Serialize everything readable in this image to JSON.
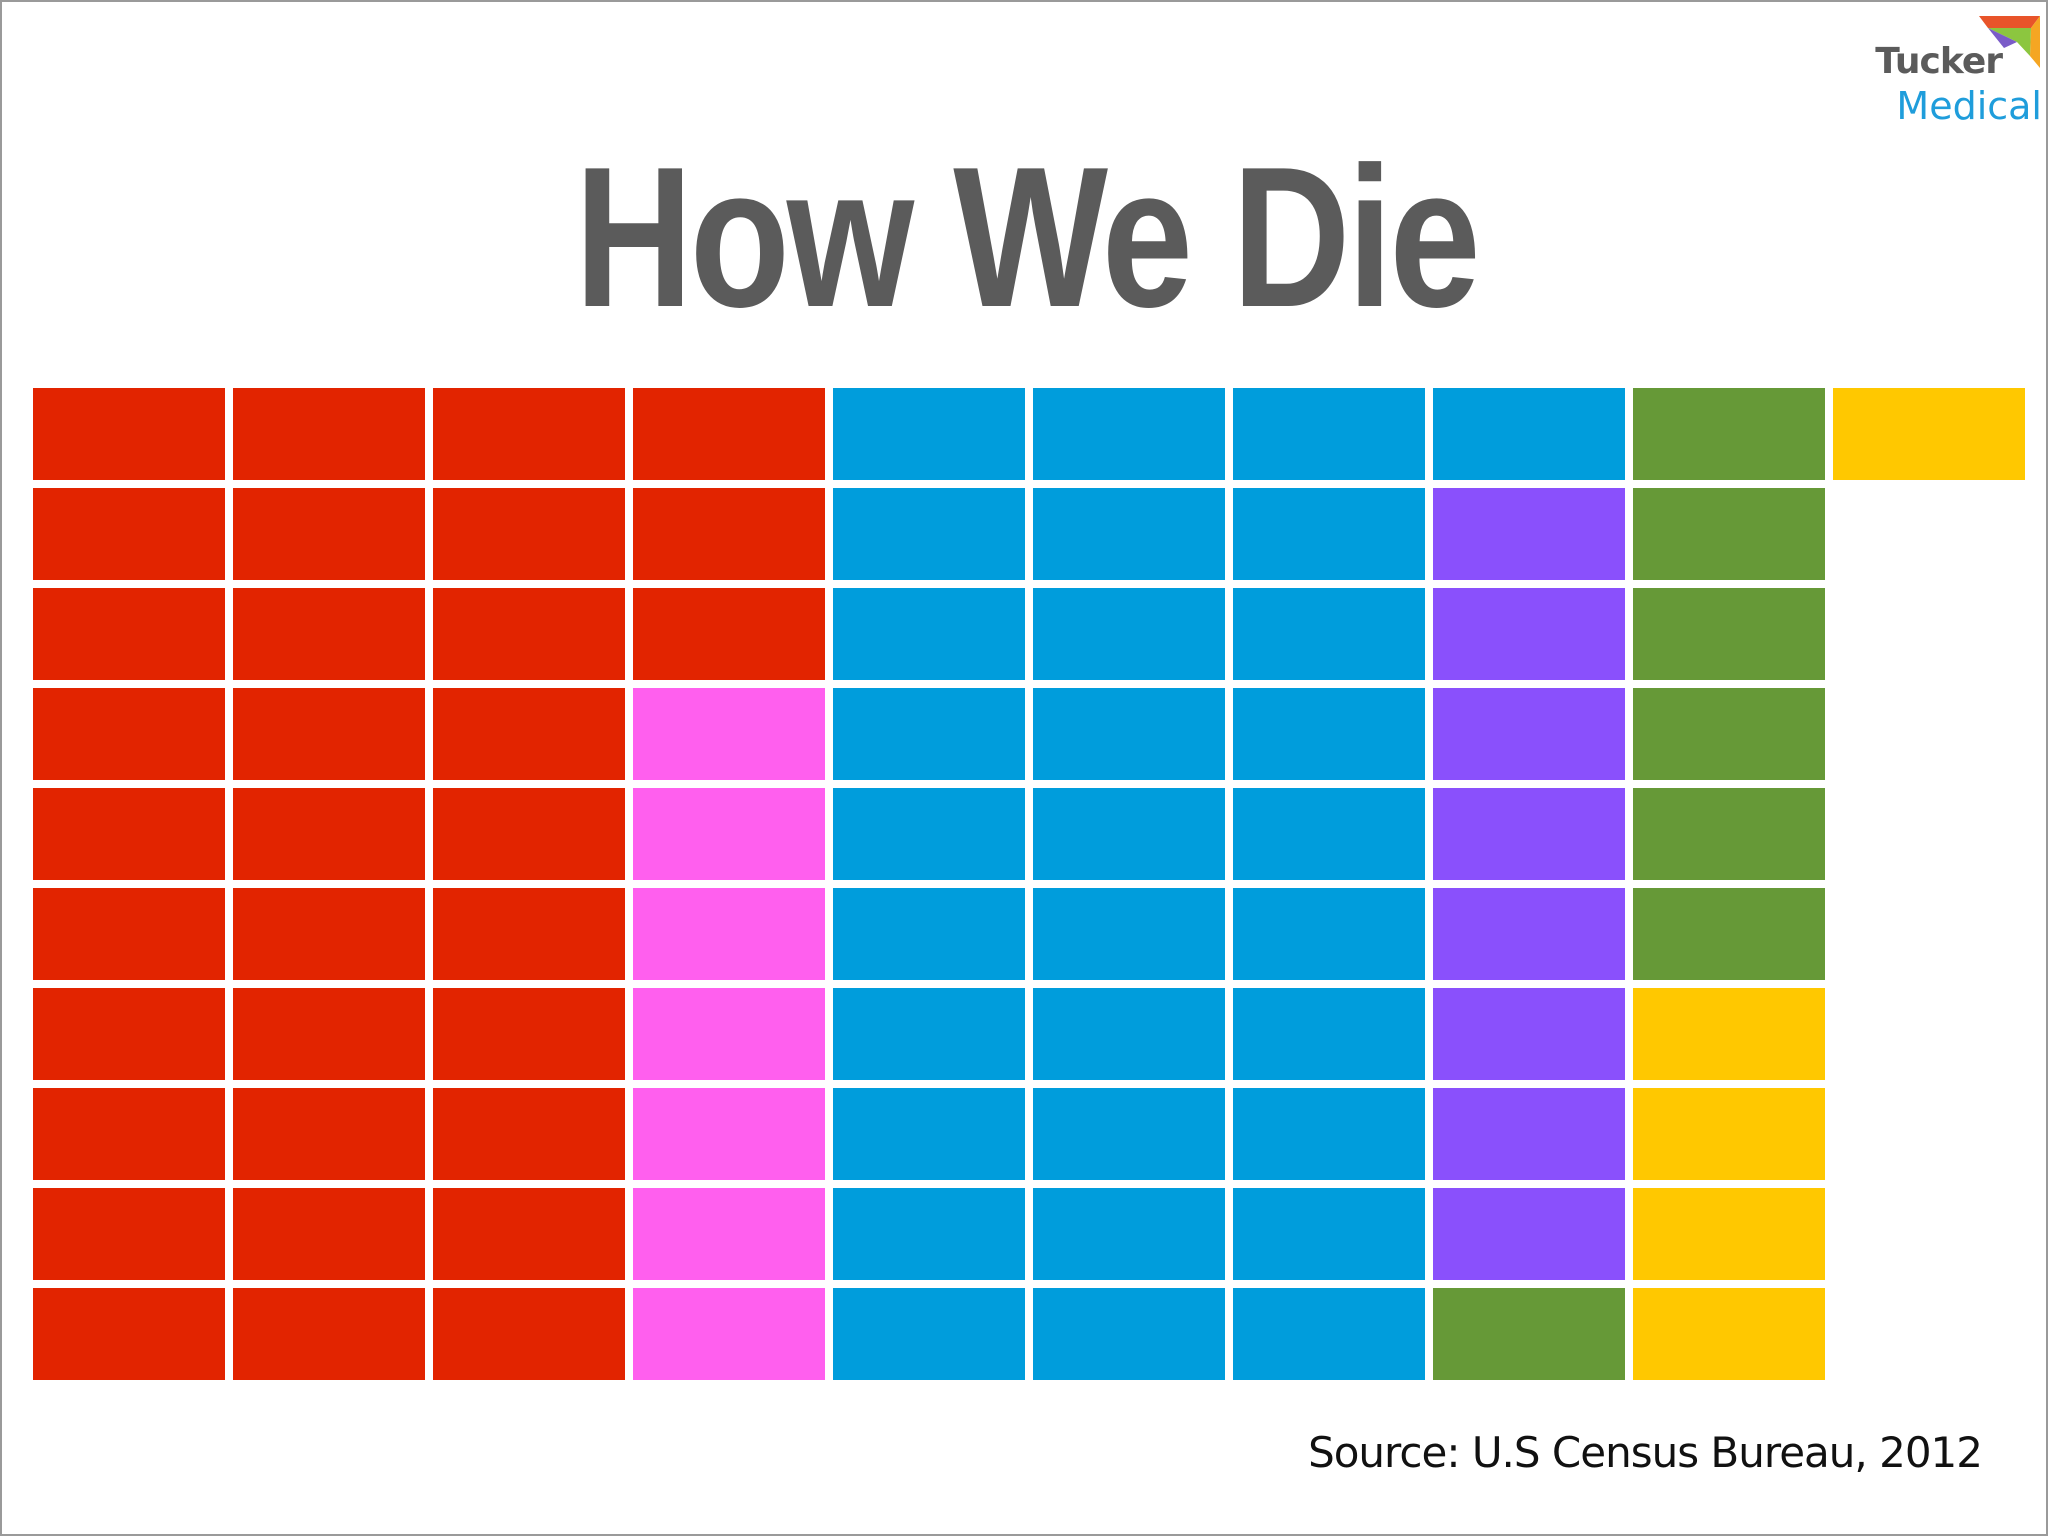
{
  "logo": {
    "line1": "Tucker",
    "line2": "Medical"
  },
  "chart_data": {
    "type": "waffle",
    "title": "How We Die",
    "source": "Source: U.S Census Bureau, 2012",
    "columns": 10,
    "rows": 10,
    "fill_order": "column-major, top to bottom, left to right",
    "series": [
      {
        "color": "#e22400",
        "cells": 33
      },
      {
        "color": "#ff5fee",
        "cells": 7
      },
      {
        "color": "#009ddc",
        "cells": 31
      },
      {
        "color": "#8a50fc",
        "cells": 8
      },
      {
        "color": "#669937",
        "cells": 7
      },
      {
        "color": "#ffc800",
        "cells": 5
      }
    ],
    "empty_cells": 9
  }
}
